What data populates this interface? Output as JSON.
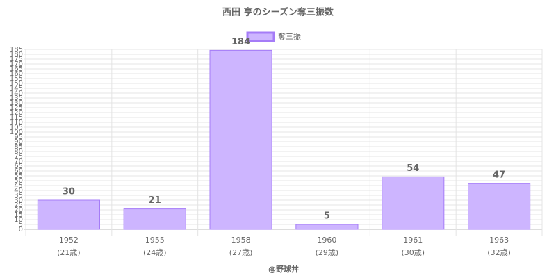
{
  "chart_data": {
    "type": "bar",
    "title": "西田 亨のシーズン奪三振数",
    "legend": "奪三振",
    "categories": [
      [
        "1952",
        "(21歳)"
      ],
      [
        "1955",
        "(24歳)"
      ],
      [
        "1958",
        "(27歳)"
      ],
      [
        "1960",
        "(29歳)"
      ],
      [
        "1961",
        "(30歳)"
      ],
      [
        "1963",
        "(32歳)"
      ]
    ],
    "values": [
      30,
      21,
      184,
      5,
      54,
      47
    ],
    "color": "#cdb5ff",
    "border_color": "#a57cf7",
    "ylim": [
      0,
      185
    ],
    "yticks": [
      0,
      5,
      10,
      15,
      20,
      25,
      30,
      35,
      40,
      45,
      50,
      55,
      60,
      65,
      70,
      75,
      80,
      85,
      90,
      95,
      100,
      105,
      110,
      115,
      120,
      125,
      130,
      135,
      140,
      145,
      150,
      155,
      160,
      165,
      170,
      175,
      180,
      185
    ],
    "grid": true,
    "caption": "@野球丼"
  }
}
